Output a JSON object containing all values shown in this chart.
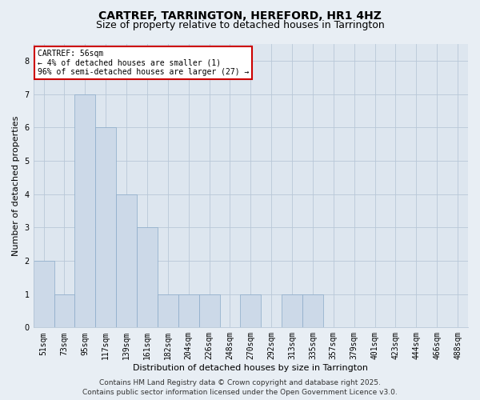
{
  "title1": "CARTREF, TARRINGTON, HEREFORD, HR1 4HZ",
  "title2": "Size of property relative to detached houses in Tarrington",
  "xlabel": "Distribution of detached houses by size in Tarrington",
  "ylabel": "Number of detached properties",
  "bins": [
    "51sqm",
    "73sqm",
    "95sqm",
    "117sqm",
    "139sqm",
    "161sqm",
    "182sqm",
    "204sqm",
    "226sqm",
    "248sqm",
    "270sqm",
    "292sqm",
    "313sqm",
    "335sqm",
    "357sqm",
    "379sqm",
    "401sqm",
    "423sqm",
    "444sqm",
    "466sqm",
    "488sqm"
  ],
  "values": [
    2,
    1,
    7,
    6,
    4,
    3,
    1,
    1,
    1,
    0,
    1,
    0,
    1,
    1,
    0,
    0,
    0,
    0,
    0,
    0,
    0
  ],
  "bar_color": "#ccd9e8",
  "bar_edge_color": "#8aaac8",
  "annotation_text": "CARTREF: 56sqm\n← 4% of detached houses are smaller (1)\n96% of semi-detached houses are larger (27) →",
  "annotation_box_color": "#ffffff",
  "annotation_box_edge_color": "#cc0000",
  "ylim": [
    0,
    8.5
  ],
  "yticks": [
    0,
    1,
    2,
    3,
    4,
    5,
    6,
    7,
    8
  ],
  "footer1": "Contains HM Land Registry data © Crown copyright and database right 2025.",
  "footer2": "Contains public sector information licensed under the Open Government Licence v3.0.",
  "bg_color": "#e8eef4",
  "plot_bg_color": "#dde6ef",
  "grid_color": "#b8c8d8",
  "title_fontsize": 10,
  "subtitle_fontsize": 9,
  "label_fontsize": 8,
  "tick_fontsize": 7,
  "footer_fontsize": 6.5
}
